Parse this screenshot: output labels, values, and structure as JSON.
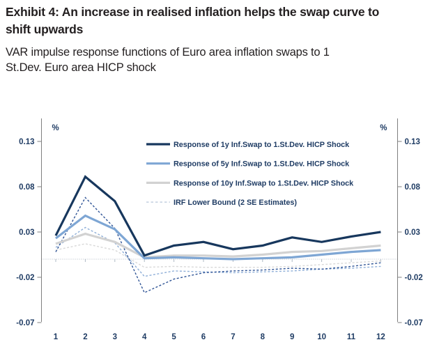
{
  "header": {
    "title_line1": "Exhibit 4: An increase in realised inflation helps the swap curve to",
    "title_line2": "shift upwards",
    "subtitle_line1": "VAR impulse response functions of Euro area inflation swaps to 1",
    "subtitle_line2": "St.Dev. Euro area HICP shock"
  },
  "chart_data": {
    "type": "line",
    "x": [
      1,
      2,
      3,
      4,
      5,
      6,
      7,
      8,
      9,
      10,
      11,
      12
    ],
    "x_tick_labels": [
      "1",
      "2",
      "3",
      "4",
      "5",
      "6",
      "7",
      "8",
      "9",
      "10",
      "11",
      "12"
    ],
    "y_ticks": [
      0.13,
      0.08,
      0.03,
      -0.02,
      -0.07
    ],
    "y_tick_labels": [
      "0.13",
      "0.08",
      "0.03",
      "-0.02",
      "-0.07"
    ],
    "ylim": [
      -0.07,
      0.15
    ],
    "y_unit_left": "%",
    "y_unit_right": "%",
    "xlabel": "",
    "ylabel": "",
    "grid": "zero-line-only",
    "axis_text_color": "#1f3c64",
    "axis_line_color": "#7f7f7f",
    "zero_line_color": "#aeb8c4",
    "series": [
      {
        "name": "Response of 1y Inf.Swap to 1.St.Dev. HICP Shock",
        "short_name": "1y-response",
        "style": "solid",
        "color": "#17375d",
        "values": [
          0.026,
          0.091,
          0.064,
          0.004,
          0.015,
          0.019,
          0.011,
          0.015,
          0.024,
          0.019,
          0.025,
          0.03
        ]
      },
      {
        "name": "Response of 5y Inf.Swap to 1.St.Dev. HICP Shock",
        "short_name": "5y-response",
        "style": "solid",
        "color": "#7ea6d4",
        "values": [
          0.023,
          0.048,
          0.033,
          0.001,
          0.002,
          0.001,
          0.0,
          0.001,
          0.002,
          0.005,
          0.008,
          0.01
        ]
      },
      {
        "name": "Response of 10y Inf.Swap to 1.St.Dev. HICP Shock",
        "short_name": "10y-response",
        "style": "solid",
        "color": "#d2d2d2",
        "values": [
          0.017,
          0.028,
          0.019,
          0.002,
          0.004,
          0.004,
          0.003,
          0.005,
          0.008,
          0.009,
          0.012,
          0.015
        ]
      },
      {
        "name": "IRF Lower Bound 1y (2 SE Estimates)",
        "short_name": "1y-lower-bound",
        "style": "dashed",
        "color": "#2f5496",
        "values": [
          0.008,
          0.068,
          0.034,
          -0.037,
          -0.022,
          -0.015,
          -0.013,
          -0.012,
          -0.01,
          -0.011,
          -0.008,
          -0.004
        ]
      },
      {
        "name": "IRF Lower Bound 5y (2 SE Estimates)",
        "short_name": "5y-lower-bound",
        "style": "dashed",
        "color": "#8fafd8",
        "values": [
          0.013,
          0.035,
          0.018,
          -0.019,
          -0.013,
          -0.014,
          -0.015,
          -0.014,
          -0.013,
          -0.011,
          -0.01,
          -0.008
        ]
      },
      {
        "name": "IRF Lower Bound 10y (2 SE Estimates)",
        "short_name": "10y-lower-bound",
        "style": "dashed",
        "color": "#d8d8d8",
        "values": [
          0.01,
          0.017,
          0.01,
          -0.009,
          -0.008,
          -0.009,
          -0.009,
          -0.009,
          -0.008,
          -0.006,
          -0.004,
          -0.002
        ]
      }
    ],
    "legend_position": "top-center-inside",
    "legend": [
      {
        "label": "Response of 1y Inf.Swap to 1.St.Dev. HICP Shock",
        "color": "#17375d",
        "style": "solid"
      },
      {
        "label": "Response of 5y Inf.Swap to 1.St.Dev. HICP Shock",
        "color": "#7ea6d4",
        "style": "solid"
      },
      {
        "label": "Response of 10y Inf.Swap to 1.St.Dev. HICP Shock",
        "color": "#d2d2d2",
        "style": "solid"
      },
      {
        "label": "IRF Lower Bound (2 SE Estimates)",
        "color": "#c3cfdf",
        "style": "dashed"
      }
    ]
  }
}
